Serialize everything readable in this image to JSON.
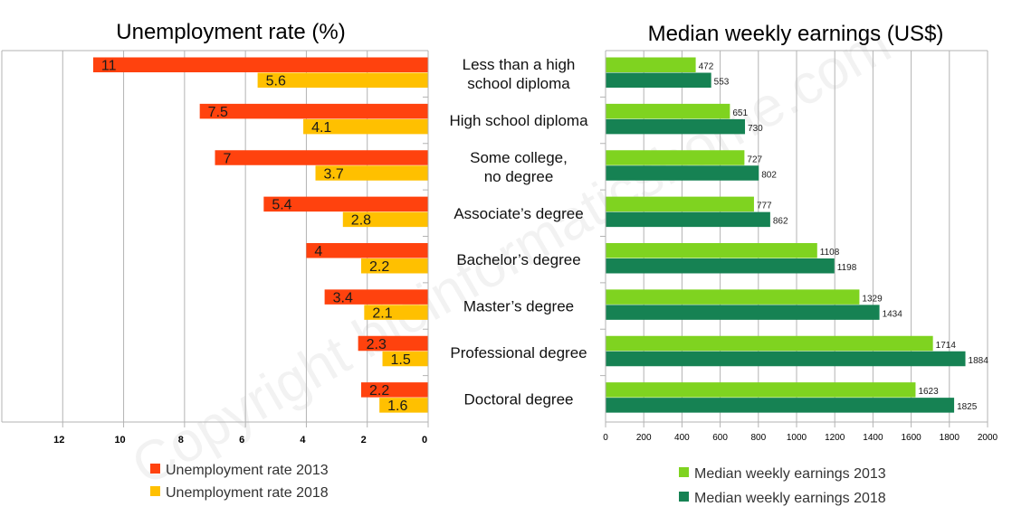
{
  "categories": [
    [
      "Less than a high",
      "school diploma"
    ],
    [
      "High school diploma"
    ],
    [
      "Some college,",
      "no degree"
    ],
    [
      "Associate’s degree"
    ],
    [
      "Bachelor’s degree"
    ],
    [
      "Master’s degree"
    ],
    [
      "Professional degree"
    ],
    [
      "Doctoral degree"
    ]
  ],
  "watermark": "Copyright bioinformaticshome.com",
  "chart_data": [
    {
      "type": "bar",
      "orientation": "horizontal-reversed",
      "title": "Unemployment rate (%)",
      "xlim": [
        0,
        14
      ],
      "x_ticks": [
        12,
        10,
        8,
        6,
        4,
        2,
        0
      ],
      "grid": "vertical",
      "legend_position": "bottom",
      "series": [
        {
          "name": "Unemployment rate 2013",
          "color": "#ff420e",
          "values": [
            11,
            7.5,
            7,
            5.4,
            4,
            3.4,
            2.3,
            2.2
          ],
          "labels": [
            "11",
            "7.5",
            "7",
            "5.4",
            "4",
            "3.4",
            "2.3",
            "2.2"
          ]
        },
        {
          "name": "Unemployment rate 2018",
          "color": "#ffc000",
          "values": [
            5.6,
            4.1,
            3.7,
            2.8,
            2.2,
            2.1,
            1.5,
            1.6
          ],
          "labels": [
            "5.6",
            "4.1",
            "3.7",
            "2.8",
            "2.2",
            "2.1",
            "1.5",
            "1.6"
          ]
        }
      ]
    },
    {
      "type": "bar",
      "orientation": "horizontal",
      "title": "Median weekly earnings (US$)",
      "xlim": [
        0,
        2000
      ],
      "x_ticks": [
        0,
        200,
        400,
        600,
        800,
        1000,
        1200,
        1400,
        1600,
        1800,
        2000
      ],
      "grid": "vertical",
      "legend_position": "bottom",
      "series": [
        {
          "name": "Median weekly earnings 2013",
          "color": "#7fd320",
          "values": [
            472,
            651,
            727,
            777,
            1108,
            1329,
            1714,
            1623
          ],
          "labels": [
            "472",
            "651",
            "727",
            "777",
            "1108",
            "1329",
            "1714",
            "1623"
          ]
        },
        {
          "name": "Median weekly earnings 2018",
          "color": "#168253",
          "values": [
            553,
            730,
            802,
            862,
            1198,
            1434,
            1884,
            1825
          ],
          "labels": [
            "553",
            "730",
            "802",
            "862",
            "1198",
            "1434",
            "1884",
            "1825"
          ]
        }
      ]
    }
  ]
}
